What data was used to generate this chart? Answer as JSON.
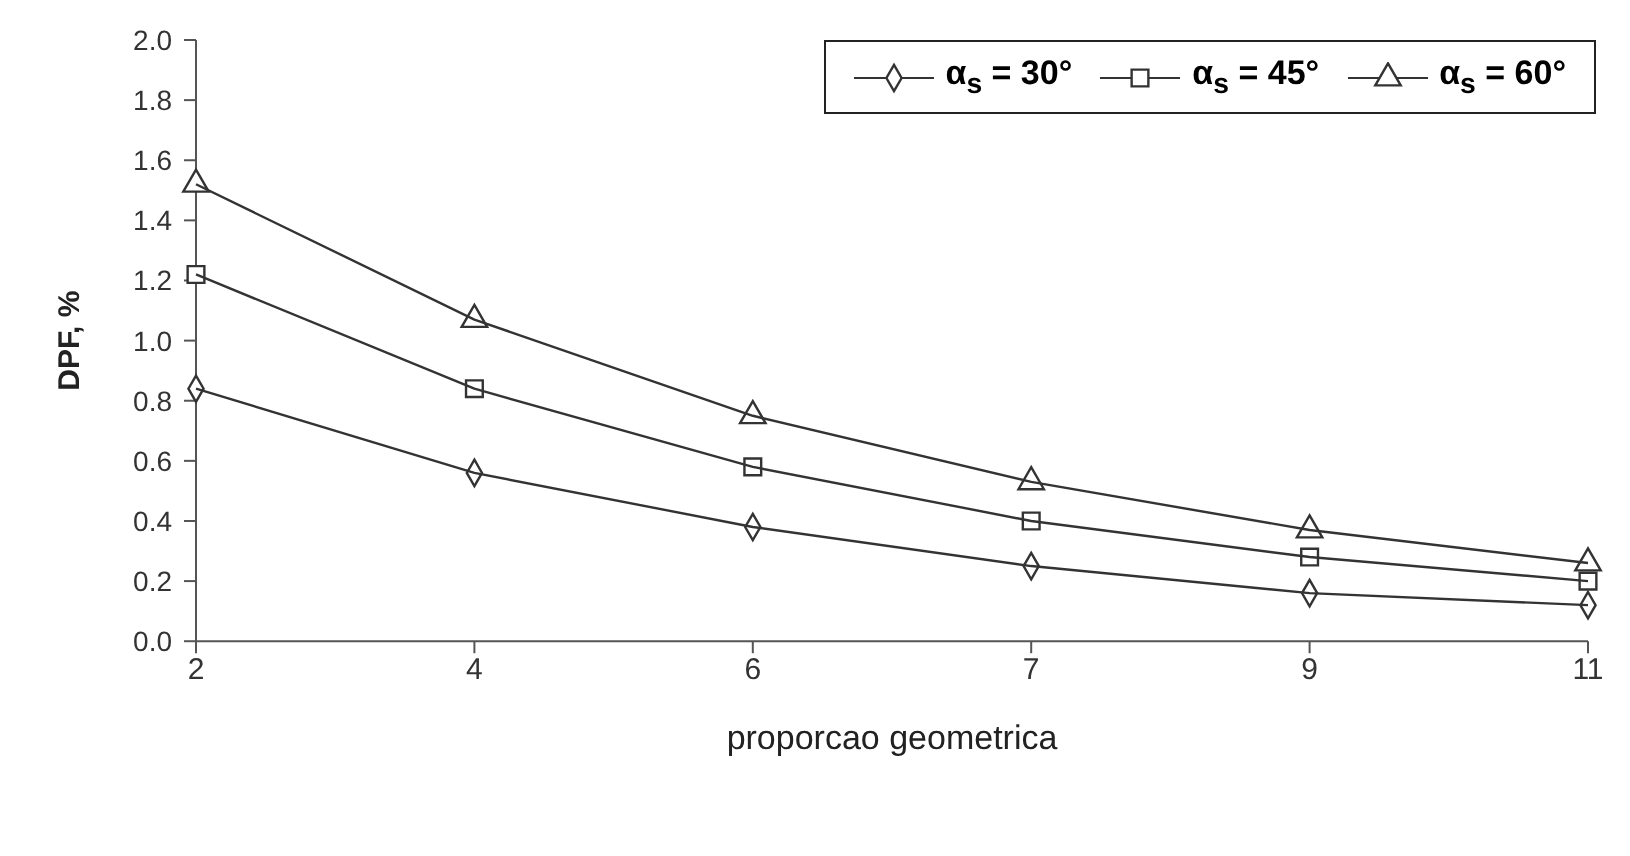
{
  "chart_data": {
    "type": "line",
    "xlabel": "proporcao geometrica",
    "ylabel": "DPF, %",
    "categories": [
      "2",
      "4",
      "6",
      "7",
      "9",
      "11"
    ],
    "series": [
      {
        "name": "α$_{s}$ = 30°",
        "color": "#333333",
        "marker": "diamond",
        "values": [
          0.84,
          0.56,
          0.38,
          0.25,
          0.16,
          0.12
        ]
      },
      {
        "name": "α$_{s}$ = 45°",
        "color": "#333333",
        "marker": "square",
        "values": [
          1.22,
          0.84,
          0.58,
          0.4,
          0.28,
          0.2
        ]
      },
      {
        "name": "α$_{s}$ = 60°",
        "color": "#333333",
        "marker": "triangle",
        "values": [
          1.52,
          1.07,
          0.75,
          0.53,
          0.37,
          0.26
        ]
      }
    ],
    "ylim": [
      0,
      2
    ],
    "yticks": [
      {
        "value": 0,
        "label": "0.0"
      },
      0.2,
      0.4,
      0.6,
      0.8,
      {
        "value": 1,
        "label": "1.0"
      },
      1.2,
      1.4,
      1.6,
      1.8,
      {
        "value": 2,
        "label": "2.0"
      }
    ],
    "grid": false,
    "legend": "top right",
    "line_style": "solid"
  }
}
